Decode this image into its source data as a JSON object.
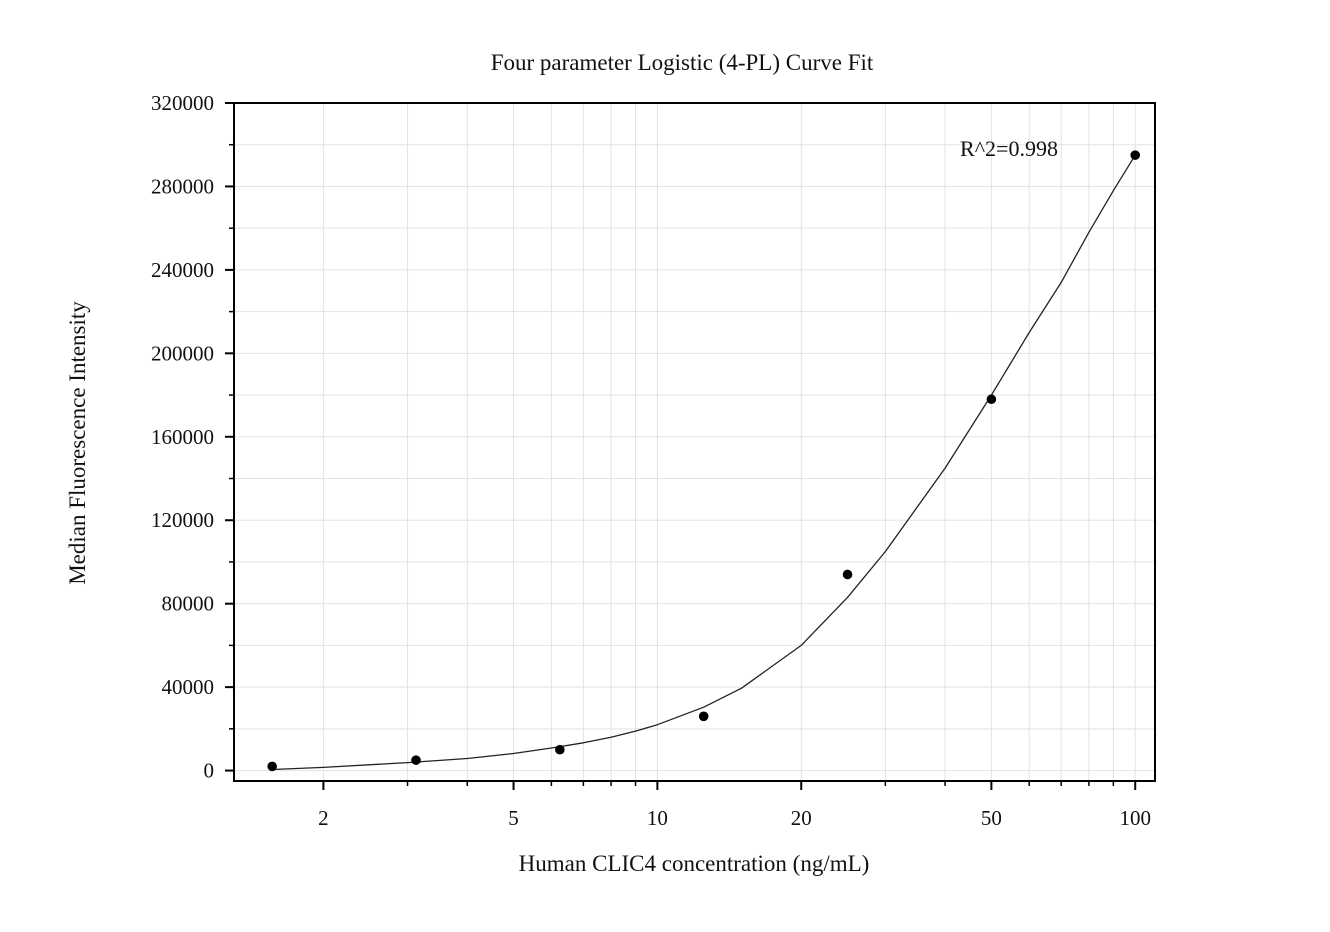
{
  "chart_data": {
    "type": "scatter",
    "title": "Four parameter Logistic (4-PL) Curve Fit",
    "xlabel": "Human CLIC4 concentration (ng/mL)",
    "ylabel": "Median Fluorescence Intensity",
    "x_scale": "log",
    "xlim": [
      1.3,
      110
    ],
    "ylim": [
      -5000,
      320000
    ],
    "x_ticks": [
      2,
      5,
      10,
      20,
      50,
      100
    ],
    "x_tick_labels": [
      "2",
      "5",
      "10",
      "20",
      "50",
      "100"
    ],
    "y_ticks": [
      0,
      40000,
      80000,
      120000,
      160000,
      200000,
      240000,
      280000,
      320000
    ],
    "y_tick_labels": [
      "0",
      "40000",
      "80000",
      "120000",
      "160000",
      "200000",
      "240000",
      "280000",
      "320000"
    ],
    "grid": true,
    "annotation": "R^2=0.998",
    "series": [
      {
        "type": "scatter",
        "x": [
          1.5625,
          3.125,
          6.25,
          12.5,
          25,
          50,
          100
        ],
        "y": [
          2000,
          5000,
          10000,
          26000,
          94000,
          178000,
          295000
        ]
      },
      {
        "type": "line",
        "x": [
          1.5625,
          2,
          3,
          4,
          5,
          6,
          7,
          8,
          9,
          10,
          12.5,
          15,
          20,
          25,
          30,
          40,
          50,
          60,
          70,
          80,
          90,
          100
        ],
        "y": [
          500,
          1500,
          3800,
          5800,
          8200,
          10800,
          13300,
          16000,
          18900,
          22000,
          30400,
          39500,
          60000,
          83000,
          105000,
          145000,
          180000,
          210000,
          234000,
          258000,
          278000,
          295000
        ]
      }
    ]
  }
}
